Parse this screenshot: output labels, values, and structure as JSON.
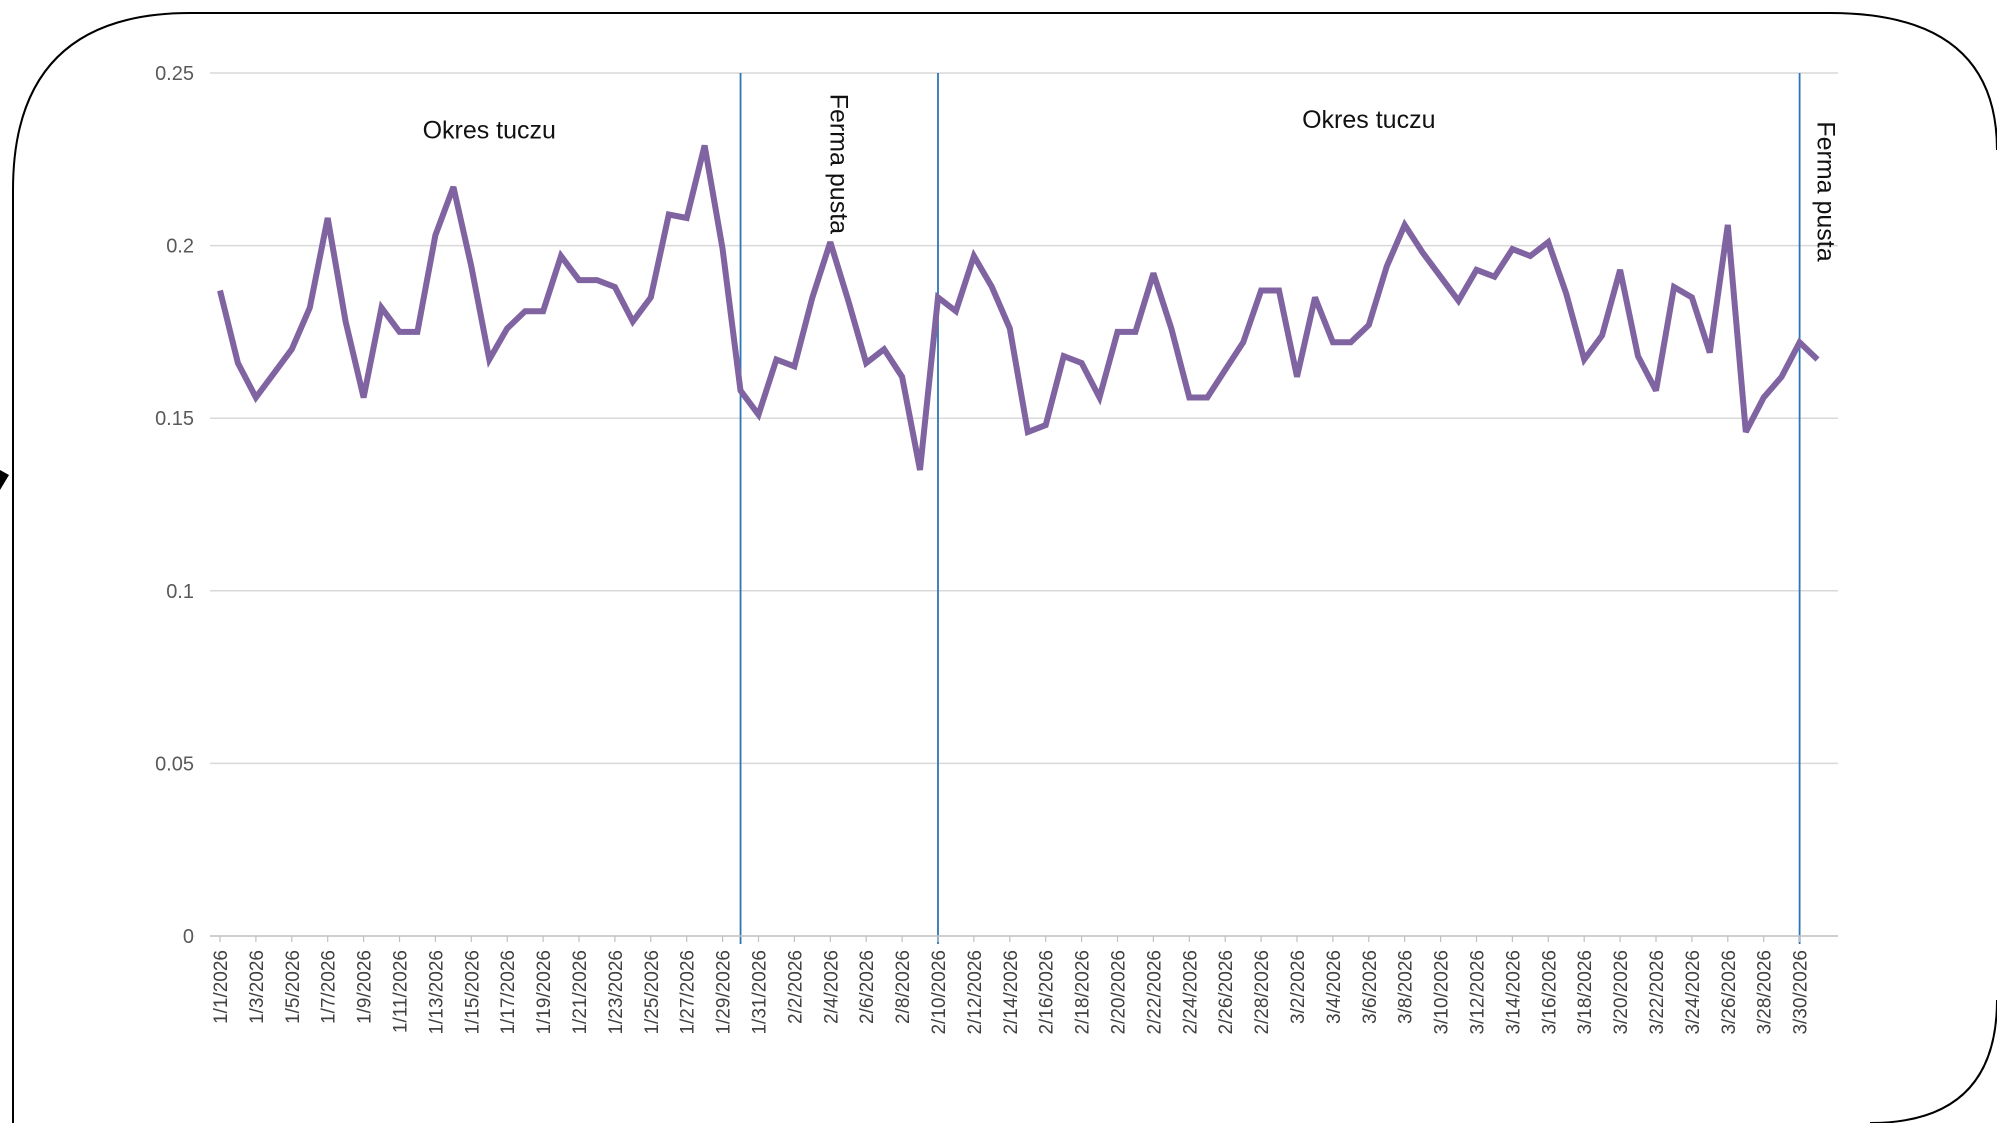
{
  "chart_data": {
    "type": "line",
    "x_start": "1/1/2026",
    "x": [
      "1/1/2026",
      "1/2/2026",
      "1/3/2026",
      "1/4/2026",
      "1/5/2026",
      "1/6/2026",
      "1/7/2026",
      "1/8/2026",
      "1/9/2026",
      "1/10/2026",
      "1/11/2026",
      "1/12/2026",
      "1/13/2026",
      "1/14/2026",
      "1/15/2026",
      "1/16/2026",
      "1/17/2026",
      "1/18/2026",
      "1/19/2026",
      "1/20/2026",
      "1/21/2026",
      "1/22/2026",
      "1/23/2026",
      "1/24/2026",
      "1/25/2026",
      "1/26/2026",
      "1/27/2026",
      "1/28/2026",
      "1/29/2026",
      "1/30/2026",
      "1/31/2026",
      "2/1/2026",
      "2/2/2026",
      "2/3/2026",
      "2/4/2026",
      "2/5/2026",
      "2/6/2026",
      "2/7/2026",
      "2/8/2026",
      "2/9/2026",
      "2/10/2026",
      "2/11/2026",
      "2/12/2026",
      "2/13/2026",
      "2/14/2026",
      "2/15/2026",
      "2/16/2026",
      "2/17/2026",
      "2/18/2026",
      "2/19/2026",
      "2/20/2026",
      "2/21/2026",
      "2/22/2026",
      "2/23/2026",
      "2/24/2026",
      "2/25/2026",
      "2/26/2026",
      "2/27/2026",
      "2/28/2026",
      "3/1/2026",
      "3/2/2026",
      "3/3/2026",
      "3/4/2026",
      "3/5/2026",
      "3/6/2026",
      "3/7/2026",
      "3/8/2026",
      "3/9/2026",
      "3/10/2026",
      "3/11/2026",
      "3/12/2026",
      "3/13/2026",
      "3/14/2026",
      "3/15/2026",
      "3/16/2026",
      "3/17/2026",
      "3/18/2026",
      "3/19/2026",
      "3/20/2026",
      "3/21/2026",
      "3/22/2026",
      "3/23/2026",
      "3/24/2026",
      "3/25/2026",
      "3/26/2026",
      "3/27/2026",
      "3/28/2026",
      "3/29/2026",
      "3/30/2026",
      "3/31/2026"
    ],
    "x_tick_labels": [
      "1/1/2026",
      "1/3/2026",
      "1/5/2026",
      "1/7/2026",
      "1/9/2026",
      "1/11/2026",
      "1/13/2026",
      "1/15/2026",
      "1/17/2026",
      "1/19/2026",
      "1/21/2026",
      "1/23/2026",
      "1/25/2026",
      "1/27/2026",
      "1/29/2026",
      "1/31/2026",
      "2/2/2026",
      "2/4/2026",
      "2/6/2026",
      "2/8/2026",
      "2/10/2026",
      "2/12/2026",
      "2/14/2026",
      "2/16/2026",
      "2/18/2026",
      "2/20/2026",
      "2/22/2026",
      "2/24/2026",
      "2/26/2026",
      "2/28/2026",
      "3/2/2026",
      "3/4/2026",
      "3/6/2026",
      "3/8/2026",
      "3/10/2026",
      "3/12/2026",
      "3/14/2026",
      "3/16/2026",
      "3/18/2026",
      "3/20/2026",
      "3/22/2026",
      "3/24/2026",
      "3/26/2026",
      "3/28/2026",
      "3/30/2026"
    ],
    "series": [
      {
        "color": "#8064A2",
        "values": [
          0.187,
          0.166,
          0.156,
          0.163,
          0.17,
          0.182,
          0.208,
          0.178,
          0.156,
          0.182,
          0.175,
          0.175,
          0.203,
          0.217,
          0.194,
          0.167,
          0.176,
          0.181,
          0.181,
          0.197,
          0.19,
          0.19,
          0.188,
          0.178,
          0.185,
          0.209,
          0.208,
          0.229,
          0.199,
          0.158,
          0.151,
          0.167,
          0.165,
          0.185,
          0.201,
          0.184,
          0.166,
          0.17,
          0.162,
          0.135,
          0.185,
          0.181,
          0.197,
          0.188,
          0.176,
          0.146,
          0.148,
          0.168,
          0.166,
          0.156,
          0.175,
          0.175,
          0.192,
          0.176,
          0.156,
          0.156,
          0.164,
          0.172,
          0.187,
          0.187,
          0.162,
          0.185,
          0.172,
          0.172,
          0.177,
          0.194,
          0.206,
          0.198,
          0.191,
          0.184,
          0.193,
          0.191,
          0.199,
          0.197,
          0.201,
          0.186,
          0.167,
          0.174,
          0.193,
          0.168,
          0.158,
          0.188,
          0.185,
          0.169,
          0.206,
          0.146,
          0.156,
          0.162,
          0.172,
          0.167
        ]
      }
    ],
    "ylim": [
      0,
      0.25
    ],
    "y_ticks": [
      "0",
      "0.05",
      "0.1",
      "0.15",
      "0.2",
      "0.25"
    ],
    "grid": true,
    "vertical_markers": [
      {
        "x": "1/30/2026",
        "color": "#2E75B6"
      },
      {
        "x": "2/10/2026",
        "color": "#2E75B6"
      },
      {
        "x": "3/30/2026",
        "color": "#2E75B6"
      }
    ],
    "annotations": [
      {
        "text": "Okres tuczu",
        "x": "1/16/2026",
        "y": 0.231,
        "rotated": false
      },
      {
        "text": "Ferma pusta",
        "x": "2/4/2026",
        "y": 0.244,
        "rotated": true
      },
      {
        "text": "Okres tuczu",
        "x": "3/6/2026",
        "y": 0.234,
        "rotated": false
      },
      {
        "text": "Ferma pusta",
        "x": "3/31/2026",
        "y": 0.236,
        "rotated": true
      }
    ]
  }
}
